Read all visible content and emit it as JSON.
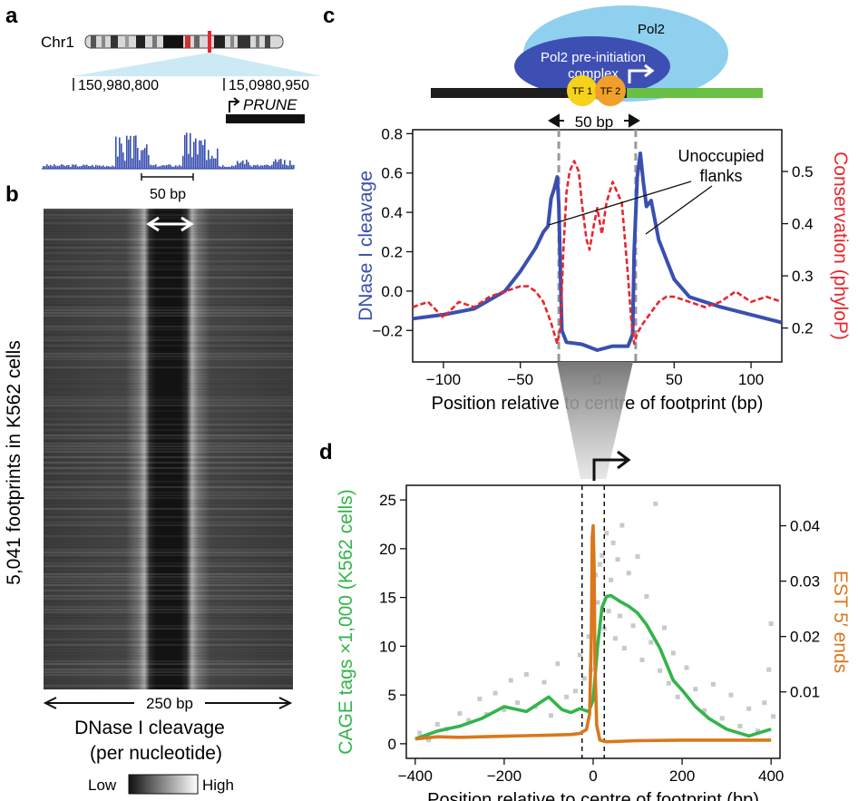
{
  "colors": {
    "blue": "#3a4fb0",
    "red": "#e8262d",
    "green": "#33b44a",
    "orange": "#d9781c",
    "grey_points": "#c9c9c9",
    "pol2_light": "#8fd0ef",
    "pol2_dark": "#3e4fb4",
    "dna_green": "#6abf45",
    "tf1": "#f6d21a",
    "tf2": "#f0a02a"
  },
  "panel_a": {
    "letter": "a",
    "chromosome": "Chr1",
    "coord_left": "150,980,800",
    "coord_right": "15,0980,950",
    "gene": "PRUNE",
    "scale": "50 bp"
  },
  "panel_b": {
    "letter": "b",
    "ylabel": "5,041 footprints in K562 cells",
    "width_label": "250 bp",
    "caption_line1": "DNase I cleavage",
    "caption_line2": "(per nucleotide)",
    "legend_low": "Low",
    "legend_high": "High"
  },
  "panel_c": {
    "letter": "c",
    "pol2": "Pol2",
    "complex_line1": "Pol2 pre-initiation",
    "complex_line2": "complex",
    "tf1": "TF 1",
    "tf2": "TF 2",
    "span": "50 bp",
    "annotation_line1": "Unoccupied",
    "annotation_line2": "flanks"
  },
  "panel_d": {
    "letter": "d"
  },
  "chart_data": [
    {
      "id": "c",
      "type": "line",
      "xlabel": "Position relative to centre of footprint (bp)",
      "ylabel": "DNase I cleavage",
      "y2label": "Conservation (phyloP)",
      "xlim": [
        -120,
        120
      ],
      "ylim": [
        -0.36,
        0.82
      ],
      "y2lim": [
        0.135,
        0.58
      ],
      "xticks": [
        -100,
        -50,
        0,
        50,
        100
      ],
      "yticks": [
        -0.2,
        0.0,
        0.2,
        0.4,
        0.6,
        0.8
      ],
      "y2ticks": [
        0.2,
        0.3,
        0.4,
        0.5
      ],
      "xtick_labels": [
        "−100",
        "−50",
        "0",
        "50",
        "100"
      ],
      "ytick_labels": [
        "−0.2",
        "0.0",
        "0.2",
        "0.4",
        "0.6",
        "0.8"
      ],
      "y2tick_labels": [
        "0.2",
        "0.3",
        "0.4",
        "0.5"
      ],
      "markers": [
        -25,
        25
      ],
      "series": [
        {
          "key": "dnase",
          "axis": "left",
          "x": [
            -120,
            -100,
            -80,
            -60,
            -50,
            -40,
            -35,
            -32,
            -30,
            -28,
            -26,
            -25,
            -23,
            -20,
            -10,
            0,
            10,
            20,
            23,
            24,
            26,
            28,
            30,
            32,
            35,
            40,
            50,
            60,
            80,
            100,
            120
          ],
          "y": [
            -0.14,
            -0.12,
            -0.09,
            0.0,
            0.1,
            0.22,
            0.3,
            0.33,
            0.47,
            0.52,
            0.58,
            0.44,
            -0.2,
            -0.26,
            -0.27,
            -0.3,
            -0.28,
            -0.28,
            -0.22,
            0.2,
            0.58,
            0.7,
            0.55,
            0.43,
            0.46,
            0.26,
            0.06,
            -0.03,
            -0.08,
            -0.12,
            -0.16
          ]
        },
        {
          "key": "conservation",
          "axis": "right",
          "x": [
            -120,
            -110,
            -100,
            -90,
            -80,
            -70,
            -60,
            -50,
            -45,
            -40,
            -35,
            -30,
            -26,
            -24,
            -22,
            -20,
            -18,
            -15,
            -12,
            -10,
            -7,
            -5,
            -2,
            0,
            3,
            6,
            10,
            13,
            16,
            18,
            20,
            22,
            24,
            26,
            30,
            35,
            40,
            45,
            50,
            60,
            70,
            80,
            90,
            100,
            110,
            120
          ],
          "y": [
            0.24,
            0.25,
            0.22,
            0.25,
            0.24,
            0.26,
            0.27,
            0.28,
            0.28,
            0.27,
            0.25,
            0.21,
            0.17,
            0.2,
            0.35,
            0.46,
            0.5,
            0.52,
            0.5,
            0.44,
            0.37,
            0.35,
            0.4,
            0.43,
            0.38,
            0.44,
            0.48,
            0.46,
            0.44,
            0.37,
            0.3,
            0.22,
            0.17,
            0.19,
            0.21,
            0.23,
            0.25,
            0.26,
            0.26,
            0.25,
            0.24,
            0.25,
            0.27,
            0.25,
            0.26,
            0.25
          ]
        }
      ]
    },
    {
      "id": "d",
      "type": "line",
      "xlabel": "Position relative to centre of footprint (bp)",
      "ylabel": "CAGE tags ×1,000 (K562 cells)",
      "y2label": "EST 5′ ends",
      "xlim": [
        -420,
        420
      ],
      "ylim": [
        -1.5,
        26.5
      ],
      "y2lim": [
        -0.002,
        0.0473
      ],
      "xticks": [
        -400,
        -200,
        0,
        200,
        400
      ],
      "yticks": [
        0,
        5,
        10,
        15,
        20,
        25
      ],
      "y2ticks": [
        0.01,
        0.02,
        0.03,
        0.04
      ],
      "xtick_labels": [
        "−400",
        "−200",
        "0",
        "200",
        "400"
      ],
      "ytick_labels": [
        "0",
        "5",
        "10",
        "15",
        "20",
        "25"
      ],
      "y2tick_labels": [
        "0.01",
        "0.02",
        "0.03",
        "0.04"
      ],
      "markers": [
        -25,
        25
      ],
      "series": [
        {
          "key": "cage_smooth",
          "axis": "left",
          "x": [
            -400,
            -350,
            -300,
            -250,
            -200,
            -150,
            -100,
            -70,
            -50,
            -30,
            -10,
            0,
            10,
            20,
            30,
            40,
            60,
            80,
            100,
            120,
            150,
            180,
            200,
            230,
            260,
            300,
            350,
            400
          ],
          "y": [
            0.5,
            1.3,
            1.8,
            2.6,
            3.8,
            3.3,
            4.8,
            3.5,
            3.2,
            3.6,
            3.3,
            4.5,
            10,
            14,
            15.1,
            15.2,
            14.6,
            14.1,
            13.4,
            12.2,
            9.8,
            6.5,
            5.5,
            3.8,
            2.6,
            1.5,
            0.8,
            1.5
          ]
        },
        {
          "key": "est",
          "axis": "right",
          "x": [
            -400,
            -350,
            -300,
            -250,
            -200,
            -150,
            -100,
            -50,
            -30,
            -15,
            -8,
            -4,
            -2,
            0,
            2,
            4,
            8,
            15,
            30,
            100,
            200,
            300,
            400
          ],
          "y": [
            0.0015,
            0.0019,
            0.0018,
            0.0019,
            0.002,
            0.0021,
            0.0022,
            0.0023,
            0.0025,
            0.0032,
            0.006,
            0.02,
            0.038,
            0.04,
            0.033,
            0.015,
            0.004,
            0.0013,
            0.001,
            0.0012,
            0.0013,
            0.0013,
            0.0013
          ]
        }
      ],
      "points": {
        "name": "CAGE tags (per position)",
        "axis": "left",
        "values": [
          [
            -390,
            1.1
          ],
          [
            -370,
            0.4
          ],
          [
            -350,
            2.0
          ],
          [
            -330,
            1.5
          ],
          [
            -300,
            3.1
          ],
          [
            -280,
            2.4
          ],
          [
            -255,
            4.6
          ],
          [
            -240,
            3.0
          ],
          [
            -220,
            5.2
          ],
          [
            -200,
            3.5
          ],
          [
            -185,
            6.5
          ],
          [
            -170,
            4.2
          ],
          [
            -150,
            7.1
          ],
          [
            -130,
            3.8
          ],
          [
            -110,
            6.3
          ],
          [
            -95,
            2.9
          ],
          [
            -80,
            8.2
          ],
          [
            -60,
            4.8
          ],
          [
            -40,
            5.4
          ],
          [
            -30,
            9.1
          ],
          [
            -20,
            6.7
          ],
          [
            -10,
            11.0
          ],
          [
            -5,
            7.6
          ],
          [
            5,
            17.3
          ],
          [
            10,
            14.5
          ],
          [
            15,
            18.4
          ],
          [
            20,
            19.3
          ],
          [
            25,
            11.8
          ],
          [
            30,
            21.6
          ],
          [
            35,
            13.6
          ],
          [
            40,
            16.8
          ],
          [
            45,
            20.6
          ],
          [
            50,
            10.8
          ],
          [
            55,
            18.9
          ],
          [
            60,
            13.1
          ],
          [
            65,
            22.4
          ],
          [
            70,
            9.8
          ],
          [
            80,
            17.5
          ],
          [
            90,
            12.1
          ],
          [
            100,
            19.2
          ],
          [
            110,
            8.6
          ],
          [
            120,
            15.1
          ],
          [
            130,
            10.4
          ],
          [
            140,
            24.6
          ],
          [
            150,
            7.5
          ],
          [
            160,
            11.9
          ],
          [
            170,
            6.2
          ],
          [
            180,
            9.3
          ],
          [
            190,
            4.8
          ],
          [
            210,
            7.8
          ],
          [
            230,
            5.6
          ],
          [
            250,
            3.4
          ],
          [
            270,
            6.1
          ],
          [
            290,
            2.6
          ],
          [
            310,
            5.0
          ],
          [
            330,
            1.8
          ],
          [
            350,
            3.6
          ],
          [
            370,
            1.3
          ],
          [
            385,
            4.2
          ],
          [
            395,
            7.6
          ],
          [
            400,
            12.3
          ],
          [
            405,
            2.8
          ]
        ]
      }
    }
  ]
}
